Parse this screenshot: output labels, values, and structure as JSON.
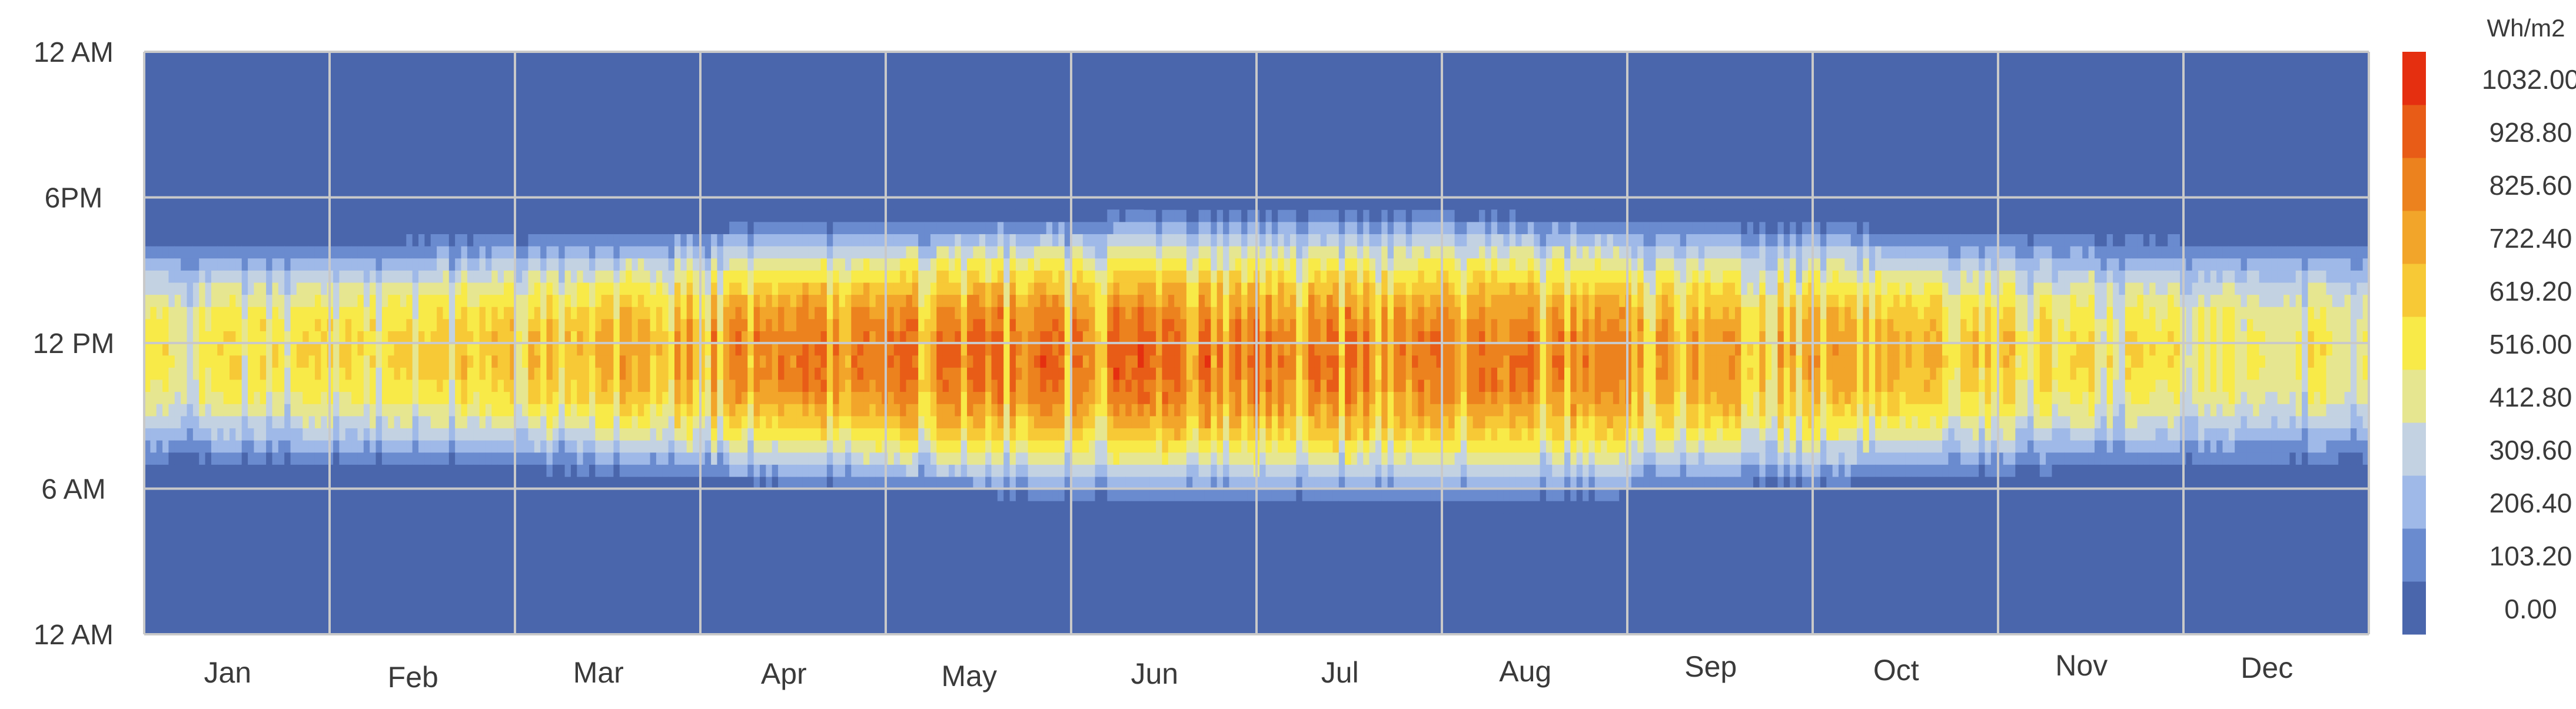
{
  "chart_data": {
    "type": "heatmap",
    "title": "",
    "xlabel": "",
    "ylabel": "",
    "unit": "Wh/m2",
    "x_categories": [
      "Jan",
      "Feb",
      "Mar",
      "Apr",
      "May",
      "Jun",
      "Jul",
      "Aug",
      "Sep",
      "Oct",
      "Nov",
      "Dec"
    ],
    "y_tick_labels": [
      "12 AM",
      "6PM",
      "12 PM",
      "6 AM",
      "12 AM"
    ],
    "y_axis_hours_top_to_bottom": [
      24,
      18,
      12,
      6,
      0
    ],
    "z_range": [
      0,
      1032
    ],
    "colorbar": {
      "labels": [
        "1032.00",
        "928.80",
        "825.60",
        "722.40",
        "619.20",
        "516.00",
        "412.80",
        "309.60",
        "206.40",
        "103.20",
        "0.00"
      ],
      "bin_edges": [
        0,
        103.2,
        206.4,
        309.6,
        412.8,
        516.0,
        619.2,
        722.4,
        825.6,
        928.8,
        1032.0
      ],
      "colors": [
        "#4a66ac",
        "#6a8bcf",
        "#9fb9e8",
        "#c3d2e2",
        "#e6e690",
        "#f8ea48",
        "#f7c936",
        "#f2a52a",
        "#ec821e",
        "#e85c17",
        "#e52f10"
      ]
    },
    "monthly_peak_irradiance_approx": [
      {
        "month": "Jan",
        "peak": 640
      },
      {
        "month": "Feb",
        "peak": 700
      },
      {
        "month": "Mar",
        "peak": 840
      },
      {
        "month": "Apr",
        "peak": 960
      },
      {
        "month": "May",
        "peak": 1000
      },
      {
        "month": "Jun",
        "peak": 1032
      },
      {
        "month": "Jul",
        "peak": 1000
      },
      {
        "month": "Aug",
        "peak": 950
      },
      {
        "month": "Sep",
        "peak": 880
      },
      {
        "month": "Oct",
        "peak": 790
      },
      {
        "month": "Nov",
        "peak": 680
      },
      {
        "month": "Dec",
        "peak": 620
      }
    ],
    "daylight_hours_approx": [
      {
        "month": "Jan",
        "sunrise": 6.8,
        "sunset": 16.5
      },
      {
        "month": "Jun",
        "sunrise": 5.2,
        "sunset": 17.6
      },
      {
        "month": "Dec",
        "sunrise": 6.8,
        "sunset": 16.6
      }
    ],
    "grid": true,
    "legend_placement": "right"
  }
}
